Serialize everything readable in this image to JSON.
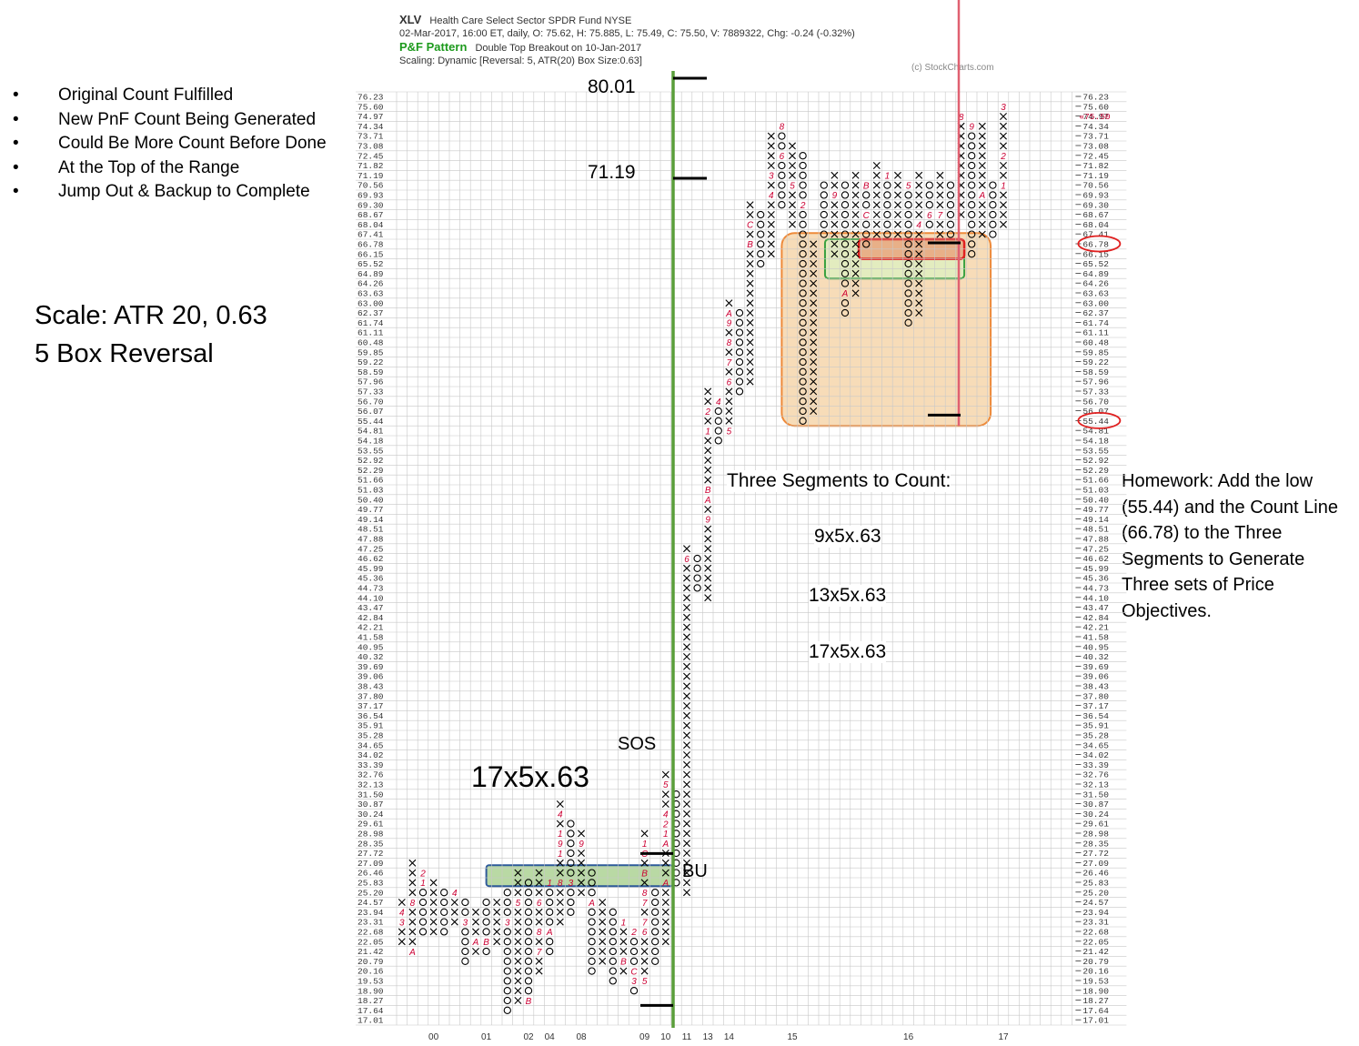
{
  "header": {
    "symbol": "XLV",
    "name": "Health Care Select Sector SPDR Fund  NYSE",
    "quote": "02-Mar-2017, 16:00 ET, daily, O: 75.62, H: 75.885, L: 75.49, C: 75.50, V: 7889322, Chg: -0.24 (-0.32%)",
    "pattern_label": "P&F Pattern",
    "pattern_text": "Double Top Breakout on 10-Jan-2017",
    "scaling": "Scaling: Dynamic [Reversal: 5, ATR(20) Box Size:0.63]",
    "copyright": "(c) StockCharts.com"
  },
  "notes": {
    "bullets": [
      "Original Count Fulfilled",
      "New PnF Count Being Generated",
      "Could Be More Count Before Done",
      "At the Top of the Range",
      "Jump Out & Backup to Complete"
    ],
    "scale_line1": "Scale: ATR 20, 0.63",
    "scale_line2": "5 Box Reversal",
    "homework": "Homework: Add the low (55.44) and the Count Line (66.78) to the Three Segments to Generate Three sets of Price Objectives.",
    "segments_title": "Three Segments to Count:",
    "segments": [
      "9x5x.63",
      "13x5x.63",
      "17x5x.63"
    ],
    "base_count": "17x5x.63",
    "target_high": "80.01",
    "target_mid": "71.19",
    "sos_label": "SOS",
    "bu_label": "BU"
  },
  "colors": {
    "x_color": "#000000",
    "o_color": "#000000",
    "month_color": "#cc0033",
    "count_line": "#5a9e3a",
    "current_price_line": "#e06070",
    "range_box_fill": "#f7dcb8",
    "range_box_stroke": "#ee8a3a",
    "base_box_fill": "#a8d08d",
    "base_box_stroke": "#2e5a9a",
    "inner_box_stroke": "#3aa040",
    "inner_box_fill": "#dfeec0",
    "red_box_fill": "#e8b088",
    "red_box_stroke": "#e02020",
    "circle_color": "#e02020"
  },
  "chart_data": {
    "type": "point-and-figure",
    "box_size": 0.63,
    "reversal": 5,
    "y_labels": [
      "76.23",
      "75.60",
      "74.97",
      "74.34",
      "73.71",
      "73.08",
      "72.45",
      "71.82",
      "71.19",
      "70.56",
      "69.93",
      "69.30",
      "68.67",
      "68.04",
      "67.41",
      "66.78",
      "66.15",
      "65.52",
      "64.89",
      "64.26",
      "63.63",
      "63.00",
      "62.37",
      "61.74",
      "61.11",
      "60.48",
      "59.85",
      "59.22",
      "58.59",
      "57.96",
      "57.33",
      "56.70",
      "56.07",
      "55.44",
      "54.81",
      "54.18",
      "53.55",
      "52.92",
      "52.29",
      "51.66",
      "51.03",
      "50.40",
      "49.77",
      "49.14",
      "48.51",
      "47.88",
      "47.25",
      "46.62",
      "45.99",
      "45.36",
      "44.73",
      "44.10",
      "43.47",
      "42.84",
      "42.21",
      "41.58",
      "40.95",
      "40.32",
      "39.69",
      "39.06",
      "38.43",
      "37.80",
      "37.17",
      "36.54",
      "35.91",
      "35.28",
      "34.65",
      "34.02",
      "33.39",
      "32.76",
      "32.13",
      "31.50",
      "30.87",
      "30.24",
      "29.61",
      "28.98",
      "28.35",
      "27.72",
      "27.09",
      "26.46",
      "25.83",
      "25.20",
      "24.57",
      "23.94",
      "23.31",
      "22.68",
      "22.05",
      "21.42",
      "20.79",
      "20.16",
      "19.53",
      "18.90",
      "18.27",
      "17.64",
      "17.01"
    ],
    "last_price_marker": "75.50",
    "x_year_labels": [
      {
        "label": "00",
        "col": 3
      },
      {
        "label": "01",
        "col": 8
      },
      {
        "label": "02",
        "col": 12
      },
      {
        "label": "04",
        "col": 14
      },
      {
        "label": "08",
        "col": 17
      },
      {
        "label": "09",
        "col": 23
      },
      {
        "label": "10",
        "col": 25
      },
      {
        "label": "11",
        "col": 27
      },
      {
        "label": "13",
        "col": 29
      },
      {
        "label": "14",
        "col": 31
      },
      {
        "label": "15",
        "col": 37
      },
      {
        "label": "16",
        "col": 48
      },
      {
        "label": "17",
        "col": 57
      }
    ],
    "columns": [
      {
        "col": 0,
        "type": "X",
        "top": "24.57",
        "bottom": "22.05"
      },
      {
        "col": 1,
        "type": "X",
        "top": "27.09",
        "bottom": "21.42"
      },
      {
        "col": 2,
        "type": "O",
        "top": "26.46",
        "bottom": "22.68"
      },
      {
        "col": 3,
        "type": "X",
        "top": "25.83",
        "bottom": "22.68"
      },
      {
        "col": 4,
        "type": "O",
        "top": "25.20",
        "bottom": "22.68"
      },
      {
        "col": 5,
        "type": "X",
        "top": "25.20",
        "bottom": "23.31"
      },
      {
        "col": 6,
        "type": "O",
        "top": "24.57",
        "bottom": "20.79"
      },
      {
        "col": 7,
        "type": "X",
        "top": "23.94",
        "bottom": "21.42"
      },
      {
        "col": 8,
        "type": "O",
        "top": "24.57",
        "bottom": "21.42"
      },
      {
        "col": 9,
        "type": "X",
        "top": "24.57",
        "bottom": "22.05"
      },
      {
        "col": 10,
        "type": "O",
        "top": "25.20",
        "bottom": "17.64"
      },
      {
        "col": 11,
        "type": "X",
        "top": "26.46",
        "bottom": "18.27"
      },
      {
        "col": 12,
        "type": "O",
        "top": "25.83",
        "bottom": "18.27"
      },
      {
        "col": 13,
        "type": "X",
        "top": "26.46",
        "bottom": "20.16"
      },
      {
        "col": 14,
        "type": "O",
        "top": "25.83",
        "bottom": "21.42"
      },
      {
        "col": 15,
        "type": "X",
        "top": "30.87",
        "bottom": "23.31"
      },
      {
        "col": 16,
        "type": "O",
        "top": "29.61",
        "bottom": "23.94"
      },
      {
        "col": 17,
        "type": "X",
        "top": "28.98",
        "bottom": "25.20"
      },
      {
        "col": 18,
        "type": "O",
        "top": "26.46",
        "bottom": "20.16"
      },
      {
        "col": 19,
        "type": "X",
        "top": "24.57",
        "bottom": "20.79"
      },
      {
        "col": 20,
        "type": "O",
        "top": "23.94",
        "bottom": "19.53"
      },
      {
        "col": 21,
        "type": "X",
        "top": "23.31",
        "bottom": "20.16"
      },
      {
        "col": 22,
        "type": "O",
        "top": "22.68",
        "bottom": "18.90"
      },
      {
        "col": 23,
        "type": "X",
        "top": "28.98",
        "bottom": "19.53"
      },
      {
        "col": 24,
        "type": "O",
        "top": "25.20",
        "bottom": "20.79"
      },
      {
        "col": 25,
        "type": "X",
        "top": "32.76",
        "bottom": "22.05"
      },
      {
        "col": 26,
        "type": "O",
        "top": "31.50",
        "bottom": "25.83"
      },
      {
        "col": 27,
        "type": "X",
        "top": "47.25",
        "bottom": "25.20"
      },
      {
        "col": 28,
        "type": "O",
        "top": "46.62",
        "bottom": "44.73"
      },
      {
        "col": 29,
        "type": "X",
        "top": "57.33",
        "bottom": "44.10"
      },
      {
        "col": 30,
        "type": "O",
        "top": "56.70",
        "bottom": "54.18"
      },
      {
        "col": 31,
        "type": "X",
        "top": "63.00",
        "bottom": "54.81"
      },
      {
        "col": 32,
        "type": "O",
        "top": "62.37",
        "bottom": "57.33"
      },
      {
        "col": 33,
        "type": "X",
        "top": "69.30",
        "bottom": "57.96"
      },
      {
        "col": 34,
        "type": "O",
        "top": "68.67",
        "bottom": "65.52"
      },
      {
        "col": 35,
        "type": "X",
        "top": "73.71",
        "bottom": "66.15"
      },
      {
        "col": 36,
        "type": "O",
        "top": "74.34",
        "bottom": "69.30"
      },
      {
        "col": 37,
        "type": "X",
        "top": "73.08",
        "bottom": "68.04"
      },
      {
        "col": 38,
        "type": "O",
        "top": "72.45",
        "bottom": "55.44"
      },
      {
        "col": 39,
        "type": "X",
        "top": "66.78",
        "bottom": "56.07"
      },
      {
        "col": 40,
        "type": "O",
        "top": "70.56",
        "bottom": "67.41"
      },
      {
        "col": 41,
        "type": "X",
        "top": "71.19",
        "bottom": "66.15"
      },
      {
        "col": 42,
        "type": "O",
        "top": "70.56",
        "bottom": "62.37"
      },
      {
        "col": 43,
        "type": "X",
        "top": "71.19",
        "bottom": "63.63"
      },
      {
        "col": 44,
        "type": "O",
        "top": "70.56",
        "bottom": "66.78"
      },
      {
        "col": 45,
        "type": "X",
        "top": "71.82",
        "bottom": "67.41"
      },
      {
        "col": 46,
        "type": "O",
        "top": "71.19",
        "bottom": "67.41"
      },
      {
        "col": 47,
        "type": "X",
        "top": "71.19",
        "bottom": "67.41"
      },
      {
        "col": 48,
        "type": "O",
        "top": "70.56",
        "bottom": "61.74"
      },
      {
        "col": 49,
        "type": "X",
        "top": "71.19",
        "bottom": "62.37"
      },
      {
        "col": 50,
        "type": "O",
        "top": "70.56",
        "bottom": "68.04"
      },
      {
        "col": 51,
        "type": "X",
        "top": "71.19",
        "bottom": "67.41"
      },
      {
        "col": 52,
        "type": "O",
        "top": "70.56",
        "bottom": "67.41"
      },
      {
        "col": 53,
        "type": "X",
        "top": "74.97",
        "bottom": "68.67"
      },
      {
        "col": 54,
        "type": "O",
        "top": "74.34",
        "bottom": "66.15"
      },
      {
        "col": 55,
        "type": "X",
        "top": "74.34",
        "bottom": "67.41"
      },
      {
        "col": 56,
        "type": "O",
        "top": "70.56",
        "bottom": "67.41"
      },
      {
        "col": 57,
        "type": "X",
        "top": "75.60",
        "bottom": "68.04"
      }
    ],
    "month_marks": [
      {
        "col": 1,
        "price": "24.57",
        "label": "8"
      },
      {
        "col": 0,
        "price": "23.94",
        "label": "4"
      },
      {
        "col": 0,
        "price": "23.31",
        "label": "3"
      },
      {
        "col": 2,
        "price": "22.05",
        "label": "C"
      },
      {
        "col": 1,
        "price": "21.42",
        "label": "A"
      },
      {
        "col": 2,
        "price": "26.46",
        "label": "2"
      },
      {
        "col": 2,
        "price": "25.83",
        "label": "1"
      },
      {
        "col": 5,
        "price": "25.20",
        "label": "4"
      },
      {
        "col": 6,
        "price": "23.31",
        "label": "3"
      },
      {
        "col": 7,
        "price": "22.05",
        "label": "A"
      },
      {
        "col": 8,
        "price": "22.05",
        "label": "B"
      },
      {
        "col": 9,
        "price": "21.42",
        "label": "4"
      },
      {
        "col": 11,
        "price": "24.57",
        "label": "5"
      },
      {
        "col": 13,
        "price": "24.57",
        "label": "6"
      },
      {
        "col": 10,
        "price": "23.31",
        "label": "3"
      },
      {
        "col": 13,
        "price": "22.68",
        "label": "8"
      },
      {
        "col": 14,
        "price": "22.68",
        "label": "A"
      },
      {
        "col": 13,
        "price": "21.42",
        "label": "7"
      },
      {
        "col": 12,
        "price": "18.27",
        "label": "B"
      },
      {
        "col": 12,
        "price": "26.46",
        "label": "2"
      },
      {
        "col": 14,
        "price": "25.83",
        "label": "1"
      },
      {
        "col": 14,
        "price": "26.46",
        "label": "6"
      },
      {
        "col": 15,
        "price": "25.83",
        "label": "8"
      },
      {
        "col": 16,
        "price": "25.83",
        "label": "3"
      },
      {
        "col": 15,
        "price": "30.24",
        "label": "4"
      },
      {
        "col": 16,
        "price": "30.24",
        "label": "1"
      },
      {
        "col": 15,
        "price": "28.98",
        "label": "1"
      },
      {
        "col": 15,
        "price": "28.35",
        "label": "9"
      },
      {
        "col": 17,
        "price": "28.35",
        "label": "9"
      },
      {
        "col": 15,
        "price": "27.72",
        "label": "1"
      },
      {
        "col": 18,
        "price": "24.57",
        "label": "A"
      },
      {
        "col": 21,
        "price": "23.31",
        "label": "1"
      },
      {
        "col": 22,
        "price": "22.68",
        "label": "2"
      },
      {
        "col": 23,
        "price": "22.68",
        "label": "6"
      },
      {
        "col": 21,
        "price": "20.79",
        "label": "B"
      },
      {
        "col": 22,
        "price": "20.16",
        "label": "C"
      },
      {
        "col": 23,
        "price": "19.53",
        "label": "5"
      },
      {
        "col": 22,
        "price": "19.53",
        "label": "3"
      },
      {
        "col": 23,
        "price": "23.31",
        "label": "7"
      },
      {
        "col": 23,
        "price": "24.57",
        "label": "7"
      },
      {
        "col": 23,
        "price": "25.20",
        "label": "8"
      },
      {
        "col": 23,
        "price": "28.35",
        "label": "1"
      },
      {
        "col": 24,
        "price": "28.35",
        "label": "5"
      },
      {
        "col": 23,
        "price": "27.72",
        "label": "C"
      },
      {
        "col": 23,
        "price": "26.46",
        "label": "B"
      },
      {
        "col": 25,
        "price": "28.35",
        "label": "A"
      },
      {
        "col": 25,
        "price": "28.98",
        "label": "1"
      },
      {
        "col": 25,
        "price": "29.61",
        "label": "2"
      },
      {
        "col": 25,
        "price": "30.24",
        "label": "4"
      },
      {
        "col": 25,
        "price": "32.13",
        "label": "5"
      },
      {
        "col": 26,
        "price": "32.13",
        "label": "8"
      },
      {
        "col": 25,
        "price": "25.83",
        "label": "A"
      },
      {
        "col": 27,
        "price": "46.62",
        "label": "6"
      },
      {
        "col": 28,
        "price": "44.10",
        "label": "7"
      },
      {
        "col": 29,
        "price": "51.03",
        "label": "B"
      },
      {
        "col": 29,
        "price": "50.40",
        "label": "A"
      },
      {
        "col": 29,
        "price": "49.14",
        "label": "9"
      },
      {
        "col": 29,
        "price": "54.81",
        "label": "1"
      },
      {
        "col": 29,
        "price": "56.07",
        "label": "2"
      },
      {
        "col": 30,
        "price": "56.70",
        "label": "4"
      },
      {
        "col": 31,
        "price": "54.81",
        "label": "5"
      },
      {
        "col": 31,
        "price": "59.22",
        "label": "7"
      },
      {
        "col": 31,
        "price": "60.48",
        "label": "8"
      },
      {
        "col": 31,
        "price": "61.74",
        "label": "9"
      },
      {
        "col": 31,
        "price": "62.37",
        "label": "A"
      },
      {
        "col": 31,
        "price": "57.96",
        "label": "6"
      },
      {
        "col": 33,
        "price": "66.78",
        "label": "B"
      },
      {
        "col": 33,
        "price": "68.04",
        "label": "C"
      },
      {
        "col": 35,
        "price": "69.93",
        "label": "4"
      },
      {
        "col": 35,
        "price": "71.19",
        "label": "3"
      },
      {
        "col": 36,
        "price": "72.45",
        "label": "6"
      },
      {
        "col": 35,
        "price": "74.97",
        "label": "7"
      },
      {
        "col": 36,
        "price": "74.34",
        "label": "8"
      },
      {
        "col": 37,
        "price": "70.56",
        "label": "5"
      },
      {
        "col": 38,
        "price": "69.30",
        "label": "2"
      },
      {
        "col": 41,
        "price": "69.93",
        "label": "9"
      },
      {
        "col": 44,
        "price": "70.56",
        "label": "B"
      },
      {
        "col": 46,
        "price": "71.19",
        "label": "1"
      },
      {
        "col": 44,
        "price": "68.67",
        "label": "C"
      },
      {
        "col": 48,
        "price": "70.56",
        "label": "5"
      },
      {
        "col": 49,
        "price": "68.04",
        "label": "4"
      },
      {
        "col": 50,
        "price": "68.67",
        "label": "6"
      },
      {
        "col": 51,
        "price": "68.67",
        "label": "7"
      },
      {
        "col": 53,
        "price": "74.97",
        "label": "8"
      },
      {
        "col": 54,
        "price": "74.34",
        "label": "9"
      },
      {
        "col": 55,
        "price": "69.93",
        "label": "A"
      },
      {
        "col": 57,
        "price": "75.60",
        "label": "3"
      },
      {
        "col": 57,
        "price": "72.45",
        "label": "2"
      },
      {
        "col": 57,
        "price": "70.56",
        "label": "1"
      },
      {
        "col": 42,
        "price": "63.63",
        "label": "A"
      },
      {
        "col": 47,
        "price": "63.63",
        "label": "2"
      },
      {
        "col": 47,
        "price": "62.37",
        "label": "2"
      }
    ]
  }
}
